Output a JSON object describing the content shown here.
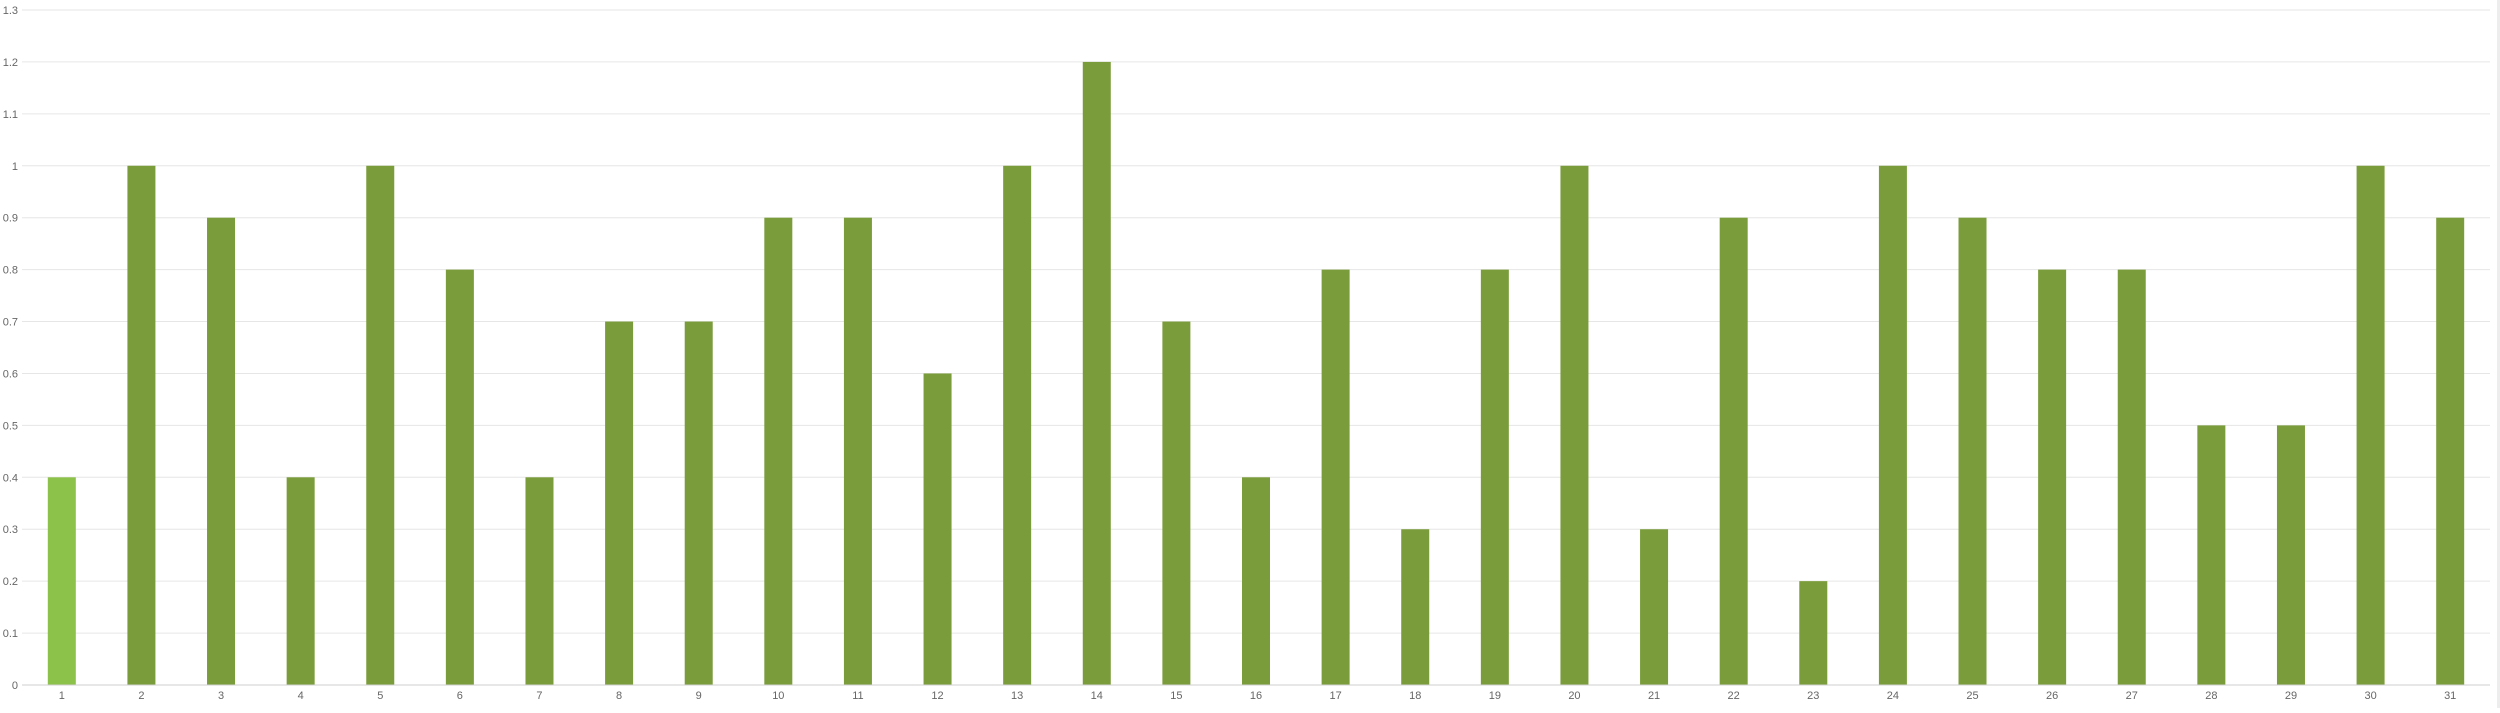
{
  "chart_data": {
    "type": "bar",
    "categories": [
      "1",
      "2",
      "3",
      "4",
      "5",
      "6",
      "7",
      "8",
      "9",
      "10",
      "11",
      "12",
      "13",
      "14",
      "15",
      "16",
      "17",
      "18",
      "19",
      "20",
      "21",
      "22",
      "23",
      "24",
      "25",
      "26",
      "27",
      "28",
      "29",
      "30",
      "31"
    ],
    "values": [
      0.4,
      1,
      0.9,
      0.4,
      1,
      0.8,
      0.4,
      0.7,
      0.7,
      0.9,
      0.9,
      0.6,
      1,
      1.2,
      0.7,
      0.4,
      0.8,
      0.3,
      0.8,
      1,
      0.3,
      0.9,
      0.2,
      1,
      0.9,
      0.8,
      0.8,
      0.5,
      0.5,
      1,
      0.9
    ],
    "yticks": [
      "0",
      "0.1",
      "0.2",
      "0.3",
      "0.4",
      "0.5",
      "0.6",
      "0.7",
      "0.8",
      "0.9",
      "1",
      "1.1",
      "1.2",
      "1.3"
    ],
    "ylim": [
      0,
      1.3
    ],
    "title": "",
    "xlabel": "",
    "ylabel": "",
    "grid": true,
    "legend": "none",
    "highlight_index": 0,
    "colors": {
      "bar": "#7a9c3a",
      "highlight": "#8cc14a",
      "grid": "#e6e6e6",
      "axis": "#cfcfcf",
      "tick_text": "#666666"
    }
  }
}
